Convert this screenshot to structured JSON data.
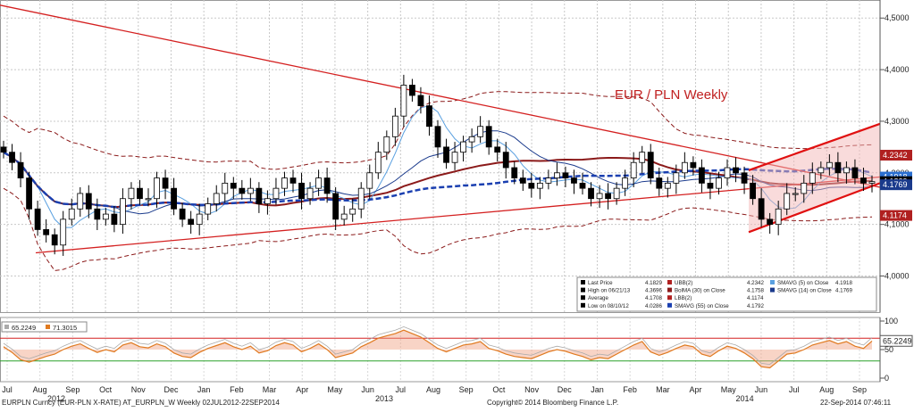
{
  "chart_data": {
    "type": "line",
    "title": "EUR / PLN Weekly",
    "price_axis": {
      "ticks": [
        "4,5000",
        "4,4000",
        "4,3000",
        "4,2000",
        "4,1000",
        "4,0000"
      ],
      "values": [
        4.5,
        4.4,
        4.3,
        4.2,
        4.1,
        4.0
      ],
      "ylim": [
        3.93,
        4.535
      ]
    },
    "price_tags": [
      {
        "text": "4.2342",
        "value": 4.2342,
        "color": "#b02020"
      },
      {
        "text": "4.1918",
        "value": 4.1918,
        "color": "#2a6fd0"
      },
      {
        "text": "4.1829",
        "value": 4.1829,
        "color": "#000000"
      },
      {
        "text": "4.1769",
        "value": 4.1769,
        "color": "#1a3a8c"
      },
      {
        "text": "4.1174",
        "value": 4.1174,
        "color": "#b02020"
      }
    ],
    "months": [
      "Jul",
      "Aug",
      "Sep",
      "Oct",
      "Nov",
      "Dec",
      "Jan",
      "Feb",
      "Mar",
      "Apr",
      "May",
      "Jun",
      "Jul",
      "Aug",
      "Sep",
      "Oct",
      "Nov",
      "Dec",
      "Jan",
      "Feb",
      "Mar",
      "Apr",
      "May",
      "Jun",
      "Jul",
      "Aug",
      "Sep"
    ],
    "years": [
      {
        "label": "2012",
        "month_index": 1.5
      },
      {
        "label": "2013",
        "month_index": 11.5
      },
      {
        "label": "2014",
        "month_index": 22.5
      }
    ],
    "closes": [
      4.24,
      4.22,
      4.19,
      4.13,
      4.09,
      4.08,
      4.06,
      4.11,
      4.13,
      4.16,
      4.13,
      4.11,
      4.12,
      4.1,
      4.15,
      4.17,
      4.15,
      4.15,
      4.19,
      4.17,
      4.13,
      4.11,
      4.1,
      4.12,
      4.14,
      4.16,
      4.18,
      4.17,
      4.16,
      4.17,
      4.14,
      4.15,
      4.17,
      4.19,
      4.18,
      4.15,
      4.17,
      4.19,
      4.16,
      4.11,
      4.12,
      4.13,
      4.17,
      4.2,
      4.24,
      4.27,
      4.31,
      4.37,
      4.35,
      4.33,
      4.29,
      4.25,
      4.22,
      4.24,
      4.26,
      4.27,
      4.29,
      4.25,
      4.24,
      4.21,
      4.19,
      4.18,
      4.17,
      4.18,
      4.19,
      4.2,
      4.19,
      4.18,
      4.17,
      4.15,
      4.16,
      4.15,
      4.17,
      4.19,
      4.22,
      4.24,
      4.19,
      4.17,
      4.18,
      4.2,
      4.22,
      4.21,
      4.18,
      4.17,
      4.19,
      4.21,
      4.2,
      4.18,
      4.15,
      4.11,
      4.1,
      4.13,
      4.16,
      4.16,
      4.18,
      4.2,
      4.21,
      4.22,
      4.2,
      4.21,
      4.19,
      4.18,
      4.1829
    ],
    "indicators": [
      "BolMA (30) on Close",
      "SMAVG (5) on Close",
      "SMAVG (14) on Close",
      "SMAVG (55) on Close",
      "UBB(2)",
      "LBB(2)"
    ],
    "legend": [
      {
        "label": "Last Price",
        "value": "4.1829"
      },
      {
        "label": "High on 06/21/13",
        "value": "4.3696"
      },
      {
        "label": "Average",
        "value": "4.1708"
      },
      {
        "label": "Low on 08/10/12",
        "value": "4.0286"
      },
      {
        "label": "UBB(2)",
        "value": "4.2342"
      },
      {
        "label": "BolMA (30) on Close",
        "value": "4.1758"
      },
      {
        "label": "LBB(2)",
        "value": "4.1174"
      },
      {
        "label": "SMAVG (55) on Close",
        "value": "4.1792"
      },
      {
        "label": "SMAVG (5) on Close",
        "value": "4.1918"
      },
      {
        "label": "SMAVG (14) on Close",
        "value": "4.1769"
      }
    ],
    "rsi": {
      "values_label": [
        "65.2249",
        "71.3015"
      ],
      "ticks": [
        "100",
        "50",
        "0"
      ],
      "tag": "65.2249",
      "levels": [
        70,
        30
      ],
      "series": [
        55,
        45,
        32,
        28,
        33,
        38,
        42,
        50,
        56,
        60,
        52,
        45,
        50,
        46,
        58,
        62,
        55,
        53,
        60,
        55,
        44,
        38,
        36,
        45,
        52,
        57,
        62,
        55,
        50,
        56,
        44,
        48,
        57,
        62,
        58,
        46,
        52,
        60,
        50,
        36,
        40,
        44,
        55,
        62,
        70,
        74,
        78,
        84,
        78,
        72,
        62,
        52,
        46,
        52,
        58,
        60,
        64,
        52,
        48,
        42,
        38,
        36,
        34,
        40,
        46,
        50,
        47,
        42,
        38,
        32,
        36,
        34,
        42,
        50,
        58,
        64,
        46,
        40,
        45,
        52,
        58,
        55,
        42,
        38,
        48,
        56,
        52,
        44,
        34,
        20,
        18,
        30,
        42,
        44,
        50,
        58,
        62,
        66,
        60,
        64,
        56,
        52,
        65
      ]
    }
  },
  "footer": {
    "left": "EURPLN Curncy (EUR-PLN X-RATE) AT_EURPLN_W  Weekly 02JUL2012-22SEP2014",
    "center": "Copyright© 2014 Bloomberg Finance L.P.",
    "right": "22-Sep-2014 07:46:11"
  }
}
